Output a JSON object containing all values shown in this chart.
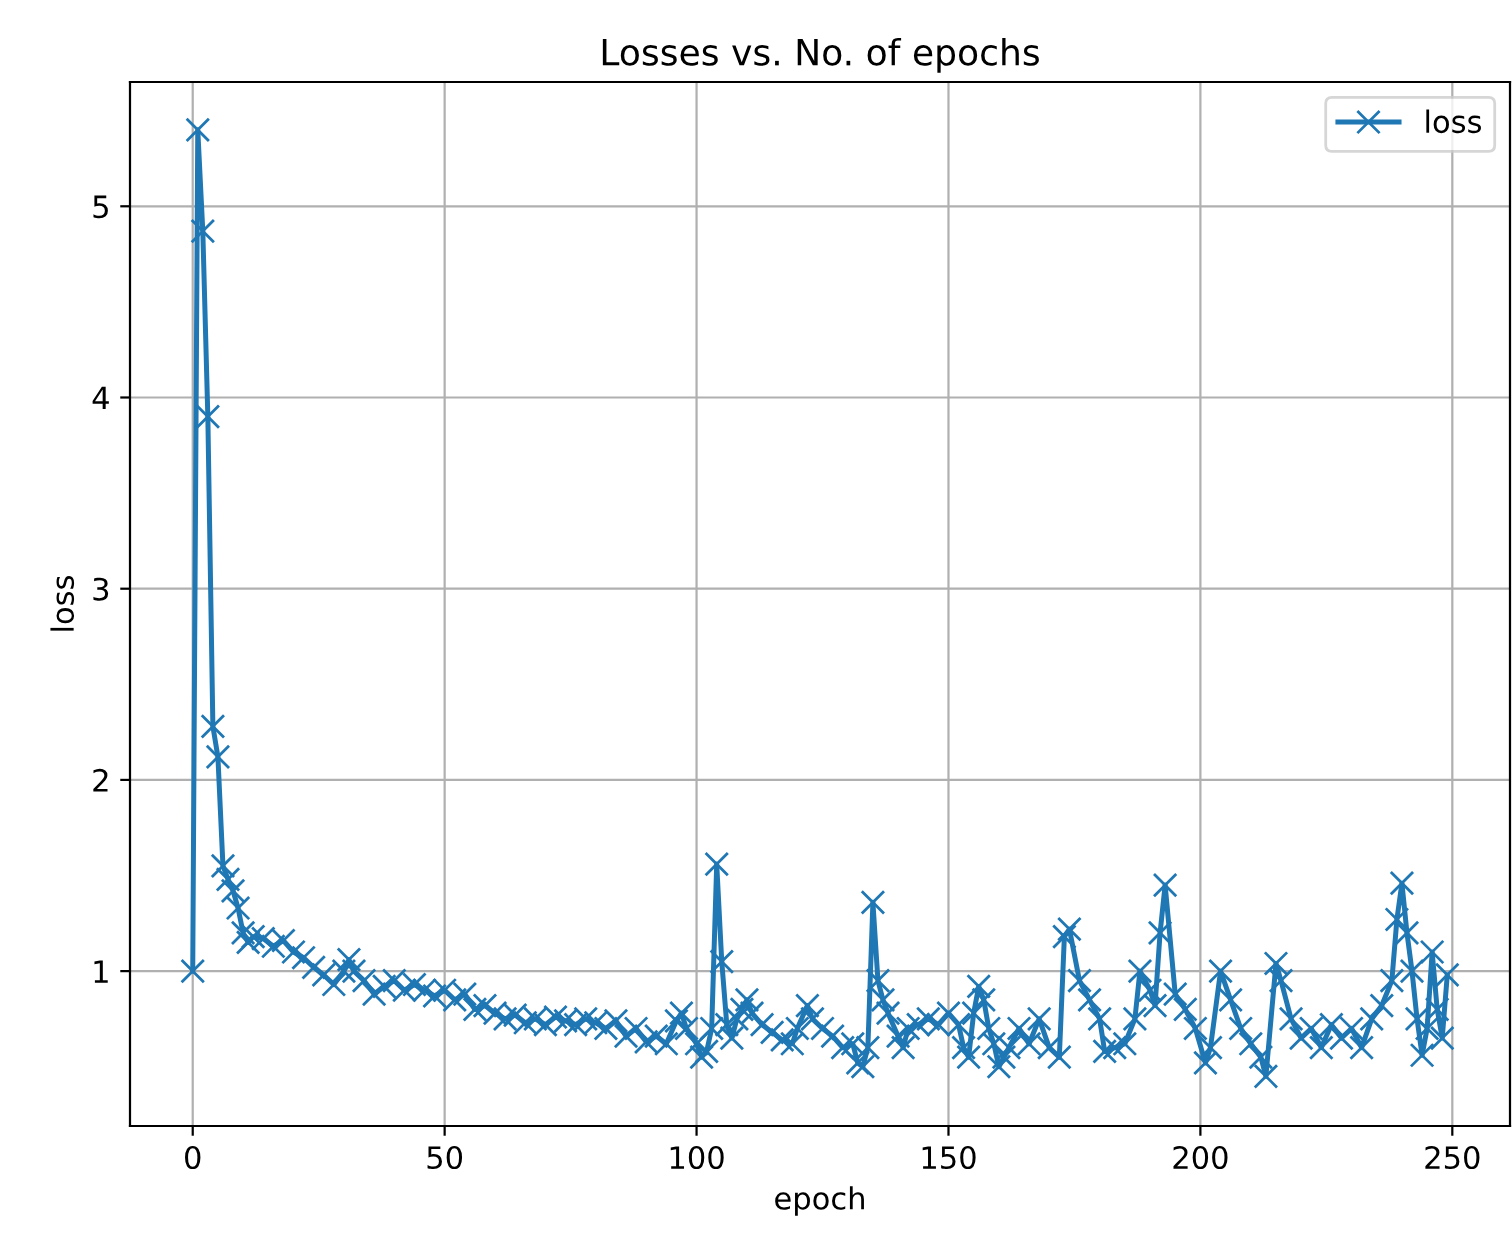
{
  "chart_data": {
    "type": "line",
    "title": "Losses vs. No. of epochs",
    "xlabel": "epoch",
    "ylabel": "loss",
    "xlim": [
      -12.45,
      261.45
    ],
    "xticks": [
      0,
      50,
      100,
      150,
      200,
      250
    ],
    "ylim": [
      0.19,
      5.65
    ],
    "yticks": [
      1,
      2,
      3,
      4,
      5
    ],
    "grid": true,
    "legend": "top right",
    "marker": "cross",
    "line_style": "solid",
    "series": [
      {
        "name": "loss",
        "color": "#1f77b4",
        "x": [
          0,
          1,
          2,
          3,
          4,
          5,
          6,
          7,
          8,
          9,
          10,
          11,
          12,
          14,
          16,
          18,
          20,
          22,
          24,
          26,
          28,
          30,
          31,
          32,
          34,
          36,
          38,
          40,
          42,
          44,
          46,
          48,
          50,
          52,
          54,
          56,
          58,
          60,
          62,
          64,
          66,
          68,
          70,
          72,
          74,
          76,
          78,
          80,
          82,
          84,
          86,
          88,
          90,
          92,
          94,
          96,
          97,
          98,
          100,
          101,
          102,
          103,
          104,
          105,
          106,
          107,
          108,
          109,
          110,
          111,
          113,
          115,
          117,
          119,
          120,
          122,
          123,
          125,
          127,
          129,
          131,
          132,
          133,
          134,
          135,
          136,
          137,
          138,
          140,
          141,
          142,
          144,
          146,
          148,
          150,
          152,
          153,
          154,
          155,
          156,
          157,
          158,
          159,
          160,
          161,
          162,
          164,
          166,
          168,
          170,
          172,
          173,
          174,
          176,
          178,
          180,
          181,
          183,
          185,
          187,
          188,
          190,
          191,
          192,
          193,
          195,
          197,
          199,
          201,
          202,
          204,
          206,
          208,
          210,
          212,
          213,
          215,
          216,
          218,
          220,
          222,
          224,
          226,
          228,
          230,
          232,
          234,
          236,
          238,
          239,
          240,
          241,
          242,
          243,
          244,
          245,
          246,
          247,
          248,
          249
        ],
        "values": [
          1.0,
          5.4,
          4.87,
          3.9,
          2.28,
          2.12,
          1.55,
          1.48,
          1.42,
          1.33,
          1.2,
          1.15,
          1.18,
          1.17,
          1.13,
          1.16,
          1.1,
          1.07,
          1.02,
          0.98,
          0.93,
          1.0,
          1.06,
          1.0,
          0.95,
          0.88,
          0.92,
          0.95,
          0.9,
          0.93,
          0.9,
          0.87,
          0.9,
          0.85,
          0.88,
          0.8,
          0.82,
          0.78,
          0.75,
          0.77,
          0.73,
          0.75,
          0.72,
          0.76,
          0.74,
          0.72,
          0.75,
          0.73,
          0.7,
          0.74,
          0.66,
          0.7,
          0.63,
          0.66,
          0.62,
          0.74,
          0.78,
          0.7,
          0.62,
          0.55,
          0.58,
          0.7,
          1.56,
          1.05,
          0.72,
          0.65,
          0.75,
          0.8,
          0.85,
          0.78,
          0.72,
          0.68,
          0.64,
          0.62,
          0.7,
          0.82,
          0.75,
          0.7,
          0.66,
          0.6,
          0.62,
          0.52,
          0.5,
          0.6,
          1.36,
          0.95,
          0.85,
          0.78,
          0.66,
          0.6,
          0.7,
          0.72,
          0.75,
          0.72,
          0.78,
          0.72,
          0.6,
          0.55,
          0.78,
          0.92,
          0.85,
          0.7,
          0.62,
          0.5,
          0.55,
          0.6,
          0.7,
          0.62,
          0.75,
          0.6,
          0.55,
          1.18,
          1.22,
          0.95,
          0.85,
          0.75,
          0.58,
          0.6,
          0.62,
          0.75,
          1.0,
          0.9,
          0.82,
          1.2,
          1.45,
          0.88,
          0.8,
          0.7,
          0.52,
          0.6,
          1.0,
          0.85,
          0.7,
          0.62,
          0.55,
          0.45,
          1.04,
          0.95,
          0.75,
          0.65,
          0.7,
          0.6,
          0.72,
          0.65,
          0.7,
          0.6,
          0.75,
          0.82,
          0.95,
          1.27,
          1.46,
          1.2,
          1.0,
          0.75,
          0.56,
          0.7,
          1.1,
          0.8,
          0.65,
          0.98
        ]
      }
    ]
  }
}
